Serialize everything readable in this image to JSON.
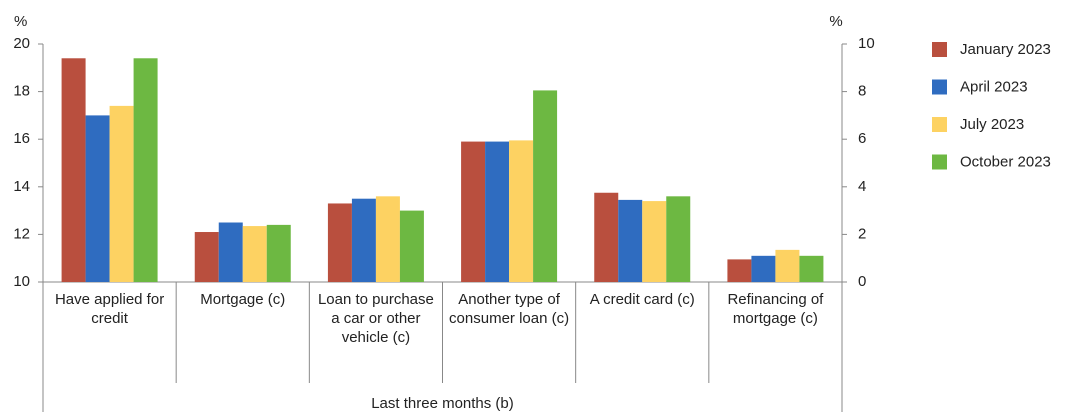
{
  "chart_data": [
    {
      "type": "bar",
      "ylabel": "%",
      "ylim": [
        10,
        20
      ],
      "yticks": [
        10,
        12,
        14,
        16,
        18,
        20
      ],
      "categories": [
        "Have applied for credit"
      ],
      "series": [
        {
          "name": "January 2023",
          "color": "#b94f3e",
          "values": [
            19.4
          ]
        },
        {
          "name": "April 2023",
          "color": "#2f6cc0",
          "values": [
            17.0
          ]
        },
        {
          "name": "July 2023",
          "color": "#fdd262",
          "values": [
            17.4
          ]
        },
        {
          "name": "October 2023",
          "color": "#6db842",
          "values": [
            19.4
          ]
        }
      ],
      "x_group_label": "Last three months (b)"
    },
    {
      "type": "bar",
      "y2label": "%",
      "y2lim": [
        0,
        10
      ],
      "y2ticks": [
        0,
        2,
        4,
        6,
        8,
        10
      ],
      "categories": [
        "Mortgage (c)",
        "Loan to purchase a car or other vehicle (c)",
        "Another type of consumer loan (c)",
        "A credit card (c)",
        "Refinancing of mortgage (c)"
      ],
      "series": [
        {
          "color": "#b94f3e",
          "axis": "y2",
          "values": [
            2.1,
            3.3,
            5.9,
            3.75,
            0.95
          ]
        },
        {
          "color": "#2f6cc0",
          "axis": "y2",
          "values": [
            2.5,
            3.5,
            5.9,
            3.45,
            1.1
          ]
        },
        {
          "color": "#fdd262",
          "axis": "y2",
          "values": [
            2.35,
            3.6,
            5.95,
            3.4,
            1.35
          ]
        },
        {
          "color": "#6db842",
          "axis": "y2",
          "values": [
            2.4,
            3.0,
            8.05,
            3.6,
            1.1
          ]
        }
      ]
    }
  ]
}
